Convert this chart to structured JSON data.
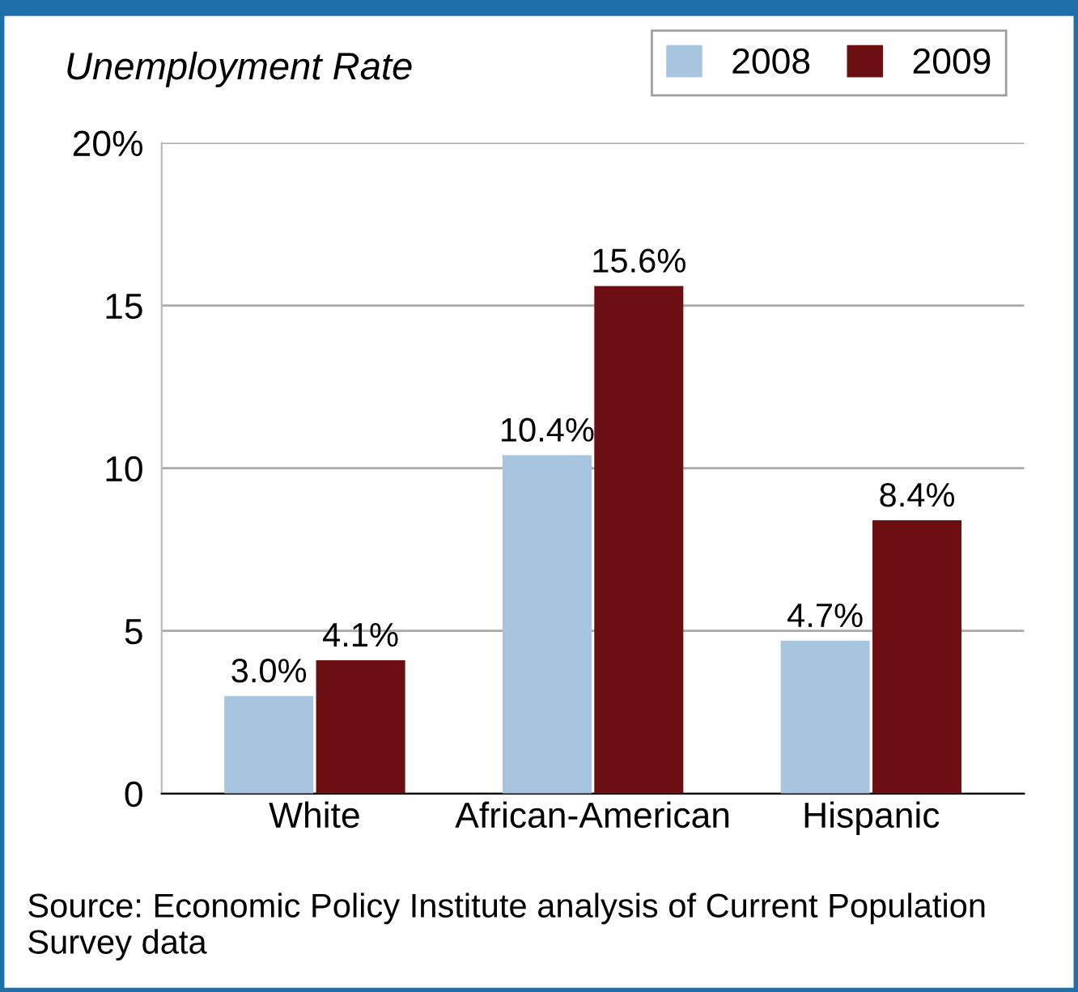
{
  "chart_data": {
    "type": "bar",
    "title": "Unemployment Rate",
    "categories": [
      "White",
      "African-American",
      "Hispanic"
    ],
    "series": [
      {
        "name": "2008",
        "color": "#a7c5df",
        "values": [
          3.0,
          10.4,
          4.7
        ],
        "value_labels": [
          "3.0%",
          "10.4%",
          "4.7%"
        ]
      },
      {
        "name": "2009",
        "color": "#6c0f12",
        "values": [
          4.1,
          15.6,
          8.4
        ],
        "value_labels": [
          "4.1%",
          "15.6%",
          "8.4%"
        ]
      }
    ],
    "ylim": [
      0,
      20
    ],
    "yticks": [
      0,
      5,
      10,
      15,
      {
        "value": 20,
        "label": "20%"
      }
    ],
    "grid": "y",
    "legend": "top right",
    "annotations": [
      "Source: Economic Policy Institute analysis of Current Population Survey data"
    ]
  }
}
